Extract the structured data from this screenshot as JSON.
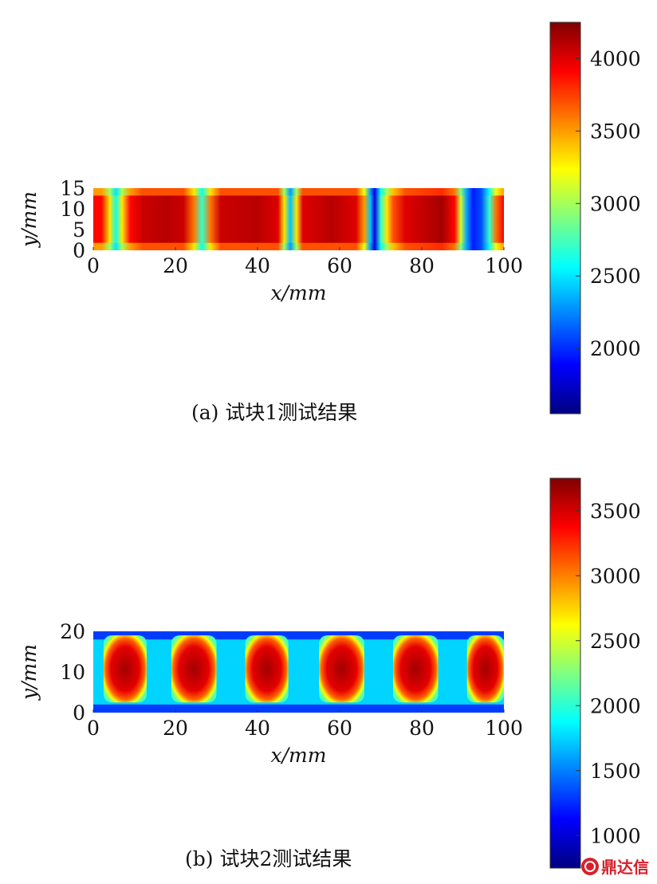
{
  "chart_data": [
    {
      "type": "heatmap",
      "caption": "(a) 试块1测试结果",
      "xlabel": "x/mm",
      "ylabel": "y/mm",
      "xlim": [
        0,
        100
      ],
      "ylim": [
        0,
        15
      ],
      "xticks": [
        "0",
        "20",
        "40",
        "60",
        "80",
        "100"
      ],
      "yticks": [
        "0",
        "5",
        "10",
        "15"
      ],
      "colorbar": {
        "min": 1550,
        "max": 4250,
        "ticks": [
          "2000",
          "2500",
          "3000",
          "3500",
          "4000"
        ]
      },
      "columns": [
        {
          "x": 0,
          "center": 3900,
          "edge": 3500
        },
        {
          "x": 2,
          "center": 3900,
          "edge": 3500
        },
        {
          "x": 4,
          "center": 3300,
          "edge": 3000
        },
        {
          "x": 5.5,
          "center": 2600,
          "edge": 2500
        },
        {
          "x": 7,
          "center": 3300,
          "edge": 3000
        },
        {
          "x": 9,
          "center": 3900,
          "edge": 3500
        },
        {
          "x": 12,
          "center": 4050,
          "edge": 3700
        },
        {
          "x": 18,
          "center": 4100,
          "edge": 3700
        },
        {
          "x": 22,
          "center": 4050,
          "edge": 3700
        },
        {
          "x": 24.5,
          "center": 3600,
          "edge": 3300
        },
        {
          "x": 26.5,
          "center": 2700,
          "edge": 2600
        },
        {
          "x": 28.5,
          "center": 3600,
          "edge": 3300
        },
        {
          "x": 31,
          "center": 4050,
          "edge": 3700
        },
        {
          "x": 40,
          "center": 4100,
          "edge": 3700
        },
        {
          "x": 45,
          "center": 4000,
          "edge": 3700
        },
        {
          "x": 46.5,
          "center": 3300,
          "edge": 3000
        },
        {
          "x": 48,
          "center": 2400,
          "edge": 2300
        },
        {
          "x": 49.5,
          "center": 3300,
          "edge": 3000
        },
        {
          "x": 51,
          "center": 4000,
          "edge": 3700
        },
        {
          "x": 58,
          "center": 4100,
          "edge": 3700
        },
        {
          "x": 64,
          "center": 4000,
          "edge": 3700
        },
        {
          "x": 66,
          "center": 3500,
          "edge": 3200
        },
        {
          "x": 67.5,
          "center": 2400,
          "edge": 2300
        },
        {
          "x": 68.5,
          "center": 1800,
          "edge": 1800
        },
        {
          "x": 70,
          "center": 2700,
          "edge": 2600
        },
        {
          "x": 71.5,
          "center": 3300,
          "edge": 3000
        },
        {
          "x": 73,
          "center": 3700,
          "edge": 3400
        },
        {
          "x": 76,
          "center": 4000,
          "edge": 3700
        },
        {
          "x": 85,
          "center": 4150,
          "edge": 3800
        },
        {
          "x": 88,
          "center": 3900,
          "edge": 3600
        },
        {
          "x": 89.5,
          "center": 3100,
          "edge": 2900
        },
        {
          "x": 91,
          "center": 2300,
          "edge": 2300
        },
        {
          "x": 92.5,
          "center": 1950,
          "edge": 1950
        },
        {
          "x": 94.5,
          "center": 2100,
          "edge": 2100
        },
        {
          "x": 96.5,
          "center": 2700,
          "edge": 2600
        },
        {
          "x": 98,
          "center": 3600,
          "edge": 3200
        },
        {
          "x": 100,
          "center": 3950,
          "edge": 3500
        }
      ]
    },
    {
      "type": "heatmap",
      "caption": "(b) 试块2测试结果",
      "xlabel": "x/mm",
      "ylabel": "y/mm",
      "xlim": [
        0,
        100
      ],
      "ylim": [
        0,
        20
      ],
      "xticks": [
        "0",
        "20",
        "40",
        "60",
        "80",
        "100"
      ],
      "yticks": [
        "0",
        "10",
        "20"
      ],
      "colorbar": {
        "min": 750,
        "max": 3750,
        "ticks": [
          "1000",
          "1500",
          "2000",
          "2500",
          "3000",
          "3500"
        ]
      },
      "blocks": [
        {
          "x0": 2.5,
          "x1": 13,
          "value": 3500
        },
        {
          "x0": 19,
          "x1": 30,
          "value": 3550
        },
        {
          "x0": 37,
          "x1": 47.5,
          "value": 3550
        },
        {
          "x0": 55,
          "x1": 66,
          "value": 3500
        },
        {
          "x0": 73,
          "x1": 84,
          "value": 3550
        },
        {
          "x0": 91,
          "x1": 101,
          "value": 3500
        }
      ],
      "background": 1750,
      "edge_rows": 1300
    }
  ],
  "captions": {
    "a": "(a) 试块1测试结果",
    "b": "(b) 试块2测试结果"
  },
  "watermark": "鼎达信"
}
